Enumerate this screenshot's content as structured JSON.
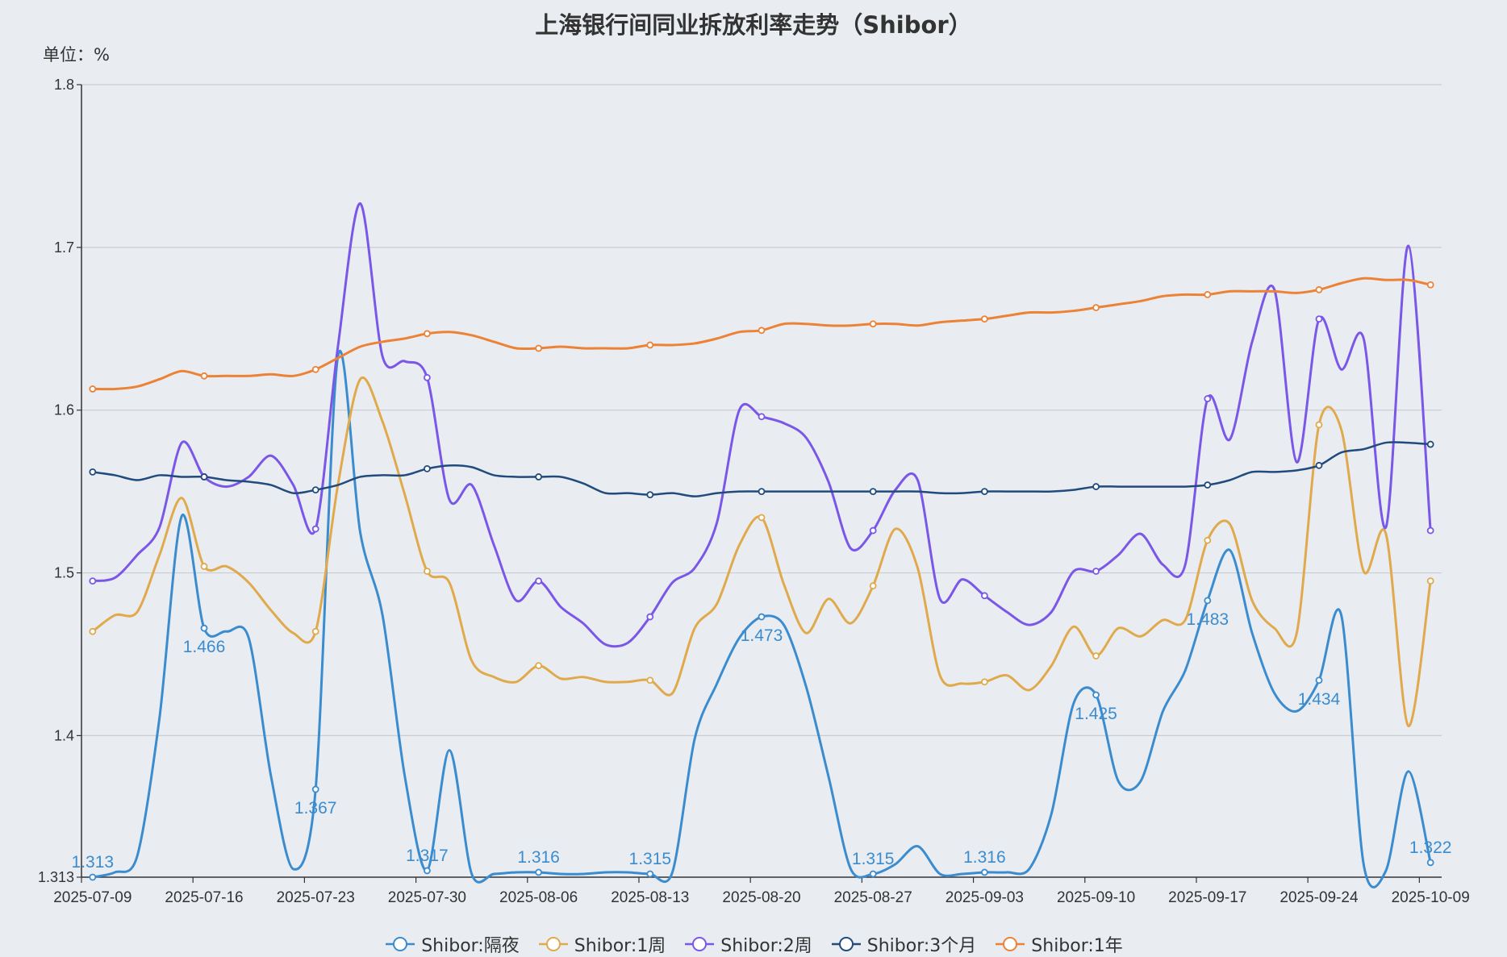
{
  "chart_data": {
    "type": "line",
    "title": "上海银行间同业拆放利率走势（Shibor）",
    "ylabel": "单位：%",
    "ylim": [
      1.313,
      1.8
    ],
    "yticks": [
      1.313,
      1.4,
      1.5,
      1.6,
      1.7,
      1.8
    ],
    "grid": true,
    "smooth": true,
    "legend_position": "bottom",
    "x": [
      "2025-07-09",
      "2025-07-10",
      "2025-07-11",
      "2025-07-14",
      "2025-07-15",
      "2025-07-16",
      "2025-07-17",
      "2025-07-18",
      "2025-07-21",
      "2025-07-22",
      "2025-07-23",
      "2025-07-24",
      "2025-07-25",
      "2025-07-28",
      "2025-07-29",
      "2025-07-30",
      "2025-07-31",
      "2025-08-01",
      "2025-08-04",
      "2025-08-05",
      "2025-08-06",
      "2025-08-07",
      "2025-08-08",
      "2025-08-11",
      "2025-08-12",
      "2025-08-13",
      "2025-08-14",
      "2025-08-15",
      "2025-08-18",
      "2025-08-19",
      "2025-08-20",
      "2025-08-21",
      "2025-08-22",
      "2025-08-25",
      "2025-08-26",
      "2025-08-27",
      "2025-08-28",
      "2025-08-29",
      "2025-09-01",
      "2025-09-02",
      "2025-09-03",
      "2025-09-04",
      "2025-09-05",
      "2025-09-08",
      "2025-09-09",
      "2025-09-10",
      "2025-09-11",
      "2025-09-12",
      "2025-09-15",
      "2025-09-16",
      "2025-09-17",
      "2025-09-18",
      "2025-09-19",
      "2025-09-22",
      "2025-09-23",
      "2025-09-24",
      "2025-09-25",
      "2025-09-26",
      "2025-09-29",
      "2025-09-30",
      "2025-10-09"
    ],
    "xtick_labels": [
      "2025-07-09",
      "2025-07-16",
      "2025-07-23",
      "2025-07-30",
      "2025-08-06",
      "2025-08-13",
      "2025-08-20",
      "2025-08-27",
      "2025-09-03",
      "2025-09-10",
      "2025-09-17",
      "2025-09-24",
      "2025-10-09"
    ],
    "series": [
      {
        "name": "Shibor:隔夜",
        "color": "#3b8ccf",
        "labeled": true,
        "values": [
          1.313,
          1.316,
          1.326,
          1.411,
          1.535,
          1.466,
          1.464,
          1.46,
          1.375,
          1.318,
          1.367,
          1.633,
          1.525,
          1.474,
          1.375,
          1.317,
          1.391,
          1.315,
          1.315,
          1.316,
          1.316,
          1.315,
          1.315,
          1.316,
          1.316,
          1.315,
          1.316,
          1.398,
          1.432,
          1.46,
          1.473,
          1.468,
          1.43,
          1.375,
          1.318,
          1.315,
          1.321,
          1.332,
          1.315,
          1.315,
          1.316,
          1.316,
          1.318,
          1.352,
          1.42,
          1.425,
          1.372,
          1.372,
          1.415,
          1.44,
          1.483,
          1.514,
          1.463,
          1.426,
          1.415,
          1.434,
          1.474,
          1.321,
          1.317,
          1.378,
          1.322
        ]
      },
      {
        "name": "Shibor:1周",
        "color": "#e0aa4c",
        "values": [
          1.464,
          1.474,
          1.476,
          1.511,
          1.546,
          1.504,
          1.504,
          1.494,
          1.477,
          1.463,
          1.464,
          1.554,
          1.619,
          1.593,
          1.548,
          1.501,
          1.494,
          1.446,
          1.436,
          1.433,
          1.443,
          1.435,
          1.436,
          1.433,
          1.433,
          1.434,
          1.426,
          1.466,
          1.481,
          1.517,
          1.534,
          1.493,
          1.463,
          1.484,
          1.469,
          1.492,
          1.527,
          1.503,
          1.437,
          1.432,
          1.433,
          1.437,
          1.428,
          1.443,
          1.467,
          1.449,
          1.466,
          1.461,
          1.471,
          1.471,
          1.52,
          1.53,
          1.483,
          1.466,
          1.463,
          1.591,
          1.588,
          1.501,
          1.524,
          1.406,
          1.495
        ]
      },
      {
        "name": "Shibor:2周",
        "color": "#7b57e8",
        "values": [
          1.495,
          1.497,
          1.511,
          1.528,
          1.58,
          1.559,
          1.553,
          1.559,
          1.572,
          1.554,
          1.527,
          1.639,
          1.727,
          1.633,
          1.63,
          1.62,
          1.545,
          1.554,
          1.517,
          1.483,
          1.495,
          1.479,
          1.469,
          1.456,
          1.457,
          1.473,
          1.494,
          1.503,
          1.531,
          1.6,
          1.596,
          1.592,
          1.583,
          1.556,
          1.515,
          1.526,
          1.551,
          1.557,
          1.484,
          1.496,
          1.486,
          1.476,
          1.468,
          1.476,
          1.501,
          1.501,
          1.511,
          1.524,
          1.505,
          1.505,
          1.607,
          1.582,
          1.642,
          1.674,
          1.568,
          1.656,
          1.625,
          1.644,
          1.528,
          1.701,
          1.526
        ]
      },
      {
        "name": "Shibor:3个月",
        "color": "#214b7c",
        "values": [
          1.562,
          1.56,
          1.557,
          1.56,
          1.559,
          1.559,
          1.557,
          1.556,
          1.554,
          1.549,
          1.551,
          1.554,
          1.559,
          1.56,
          1.56,
          1.564,
          1.566,
          1.565,
          1.56,
          1.559,
          1.559,
          1.559,
          1.555,
          1.549,
          1.549,
          1.548,
          1.549,
          1.547,
          1.549,
          1.55,
          1.55,
          1.55,
          1.55,
          1.55,
          1.55,
          1.55,
          1.55,
          1.55,
          1.549,
          1.549,
          1.55,
          1.55,
          1.55,
          1.55,
          1.551,
          1.553,
          1.553,
          1.553,
          1.553,
          1.553,
          1.554,
          1.557,
          1.562,
          1.562,
          1.563,
          1.566,
          1.574,
          1.576,
          1.58,
          1.58,
          1.579
        ]
      },
      {
        "name": "Shibor:1年",
        "color": "#ec8236",
        "values": [
          1.613,
          1.613,
          1.6145,
          1.619,
          1.624,
          1.621,
          1.621,
          1.621,
          1.622,
          1.621,
          1.625,
          1.632,
          1.639,
          1.642,
          1.644,
          1.647,
          1.648,
          1.646,
          1.642,
          1.638,
          1.638,
          1.639,
          1.638,
          1.638,
          1.638,
          1.64,
          1.64,
          1.641,
          1.644,
          1.648,
          1.649,
          1.653,
          1.653,
          1.652,
          1.652,
          1.653,
          1.653,
          1.652,
          1.654,
          1.655,
          1.656,
          1.658,
          1.66,
          1.66,
          1.661,
          1.663,
          1.665,
          1.667,
          1.67,
          1.671,
          1.671,
          1.673,
          1.673,
          1.673,
          1.672,
          1.674,
          1.678,
          1.681,
          1.68,
          1.68,
          1.677
        ]
      }
    ],
    "marker_every": 5
  }
}
